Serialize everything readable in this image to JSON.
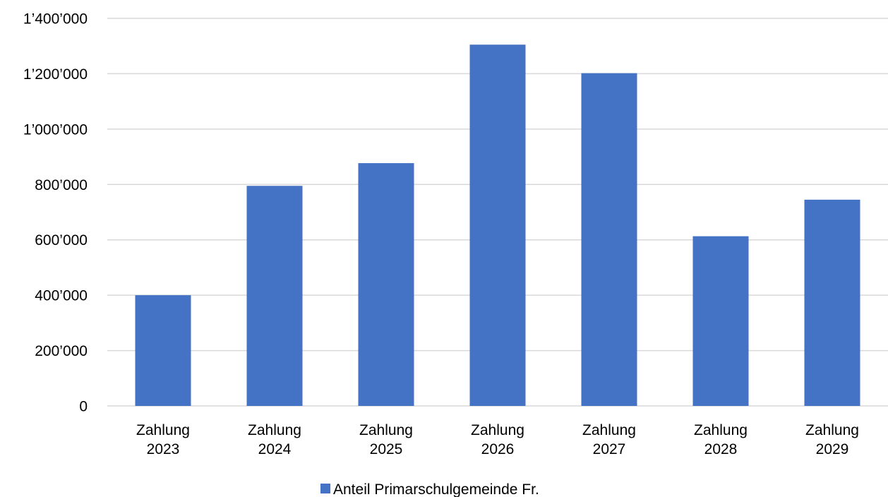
{
  "chart_data": {
    "type": "bar",
    "title": "",
    "xlabel": "",
    "ylabel": "",
    "categories": [
      [
        "Zahlung",
        "2023"
      ],
      [
        "Zahlung",
        "2024"
      ],
      [
        "Zahlung",
        "2025"
      ],
      [
        "Zahlung",
        "2026"
      ],
      [
        "Zahlung",
        "2027"
      ],
      [
        "Zahlung",
        "2028"
      ],
      [
        "Zahlung",
        "2029"
      ]
    ],
    "series": [
      {
        "name": "Anteil Primarschulgemeinde Fr.",
        "color": "#4472C4",
        "values": [
          400000,
          795000,
          877000,
          1305000,
          1202000,
          613000,
          745000
        ]
      }
    ],
    "ylim": [
      0,
      1400000
    ],
    "yticks": [
      0,
      200000,
      400000,
      600000,
      800000,
      1000000,
      1200000,
      1400000
    ],
    "ytick_labels": [
      "0",
      "200’000",
      "400’000",
      "600’000",
      "800’000",
      "1’000’000",
      "1’200’000",
      "1’400’000"
    ],
    "grid": true,
    "legend": {
      "position": "bottom-center"
    }
  }
}
